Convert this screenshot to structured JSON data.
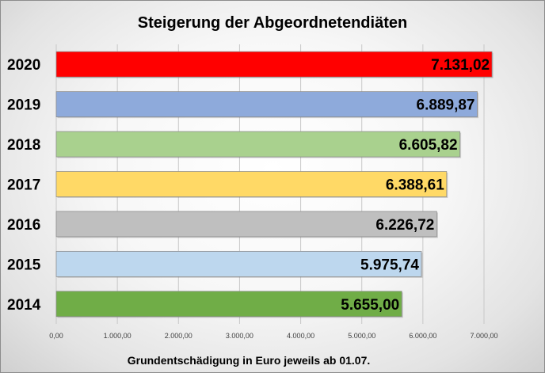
{
  "chart_data": {
    "type": "bar",
    "orientation": "horizontal",
    "title": "Steigerung der Abgeordnetendiäten",
    "xlabel": "Grundentschädigung in Euro jeweils ab 01.07.",
    "ylabel": "",
    "categories": [
      "2020",
      "2019",
      "2018",
      "2017",
      "2016",
      "2015",
      "2014"
    ],
    "values": [
      7131.02,
      6889.87,
      6605.82,
      6388.61,
      6226.72,
      5975.74,
      5655.0
    ],
    "value_labels": [
      "7.131,02",
      "6.889,87",
      "6.605,82",
      "6.388,61",
      "6.226,72",
      "5.975,74",
      "5.655,00"
    ],
    "bar_colors": [
      "#ff0000",
      "#8eaadb",
      "#a9d18e",
      "#ffd966",
      "#bfbfbf",
      "#bdd7ee",
      "#70ad47"
    ],
    "xlim": [
      0,
      7000
    ],
    "x_ticks": [
      0,
      1000,
      2000,
      3000,
      4000,
      5000,
      6000,
      7000
    ],
    "x_tick_labels": [
      "0,00",
      "1.000,00",
      "2.000,00",
      "3.000,00",
      "4.000,00",
      "5.000,00",
      "6.000,00",
      "7.000,00"
    ],
    "grid": true,
    "legend": "none"
  }
}
